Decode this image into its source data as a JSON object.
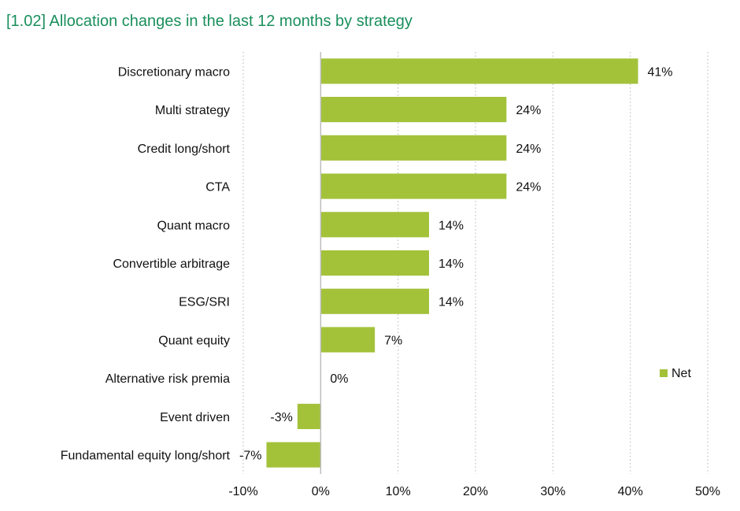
{
  "title": "[1.02] Allocation changes in the last 12 months by strategy",
  "colors": {
    "bar": "#a3c23a",
    "title": "#1a8f5c",
    "grid": "#b5b5b5",
    "axis": "#bdbdbd"
  },
  "chart_data": {
    "type": "bar",
    "orientation": "horizontal",
    "title": "[1.02] Allocation changes in the last 12 months by strategy",
    "categories": [
      "Discretionary macro",
      "Multi strategy",
      "Credit long/short",
      "CTA",
      "Quant macro",
      "Convertible arbitrage",
      "ESG/SRI",
      "Quant equity",
      "Alternative risk premia",
      "Event driven",
      "Fundamental equity long/short"
    ],
    "series": [
      {
        "name": "Net",
        "values": [
          41,
          24,
          24,
          24,
          14,
          14,
          14,
          7,
          0,
          -3,
          -7
        ]
      }
    ],
    "value_labels": [
      "41%",
      "24%",
      "24%",
      "24%",
      "14%",
      "14%",
      "14%",
      "7%",
      "0%",
      "-3%",
      "-7%"
    ],
    "xlim": [
      -10,
      50
    ],
    "xticks": [
      -10,
      0,
      10,
      20,
      30,
      40,
      50
    ],
    "xtick_labels": [
      "-10%",
      "0%",
      "10%",
      "20%",
      "30%",
      "40%",
      "50%"
    ],
    "grid": "vertical dotted",
    "legend_position": "right"
  }
}
